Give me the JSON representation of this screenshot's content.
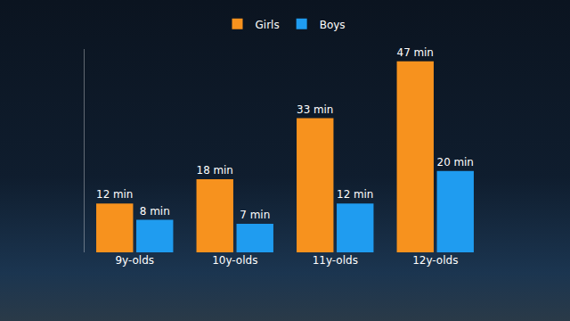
{
  "chart_data": {
    "type": "bar",
    "categories": [
      "9y-olds",
      "10y-olds",
      "11y-olds",
      "12y-olds"
    ],
    "series": [
      {
        "name": "Girls",
        "color": "#f7921e",
        "values": [
          12,
          18,
          33,
          47
        ],
        "value_labels": [
          "12 min",
          "18 min",
          "33 min",
          "47 min"
        ]
      },
      {
        "name": "Boys",
        "color": "#1f9cf0",
        "values": [
          8,
          7,
          12,
          20
        ],
        "value_labels": [
          "8 min",
          "7 min",
          "12 min",
          "20 min"
        ]
      }
    ],
    "ylim": [
      0,
      50
    ],
    "data_labels": true,
    "tick_labels": "x",
    "legend": "top",
    "grid": false
  }
}
